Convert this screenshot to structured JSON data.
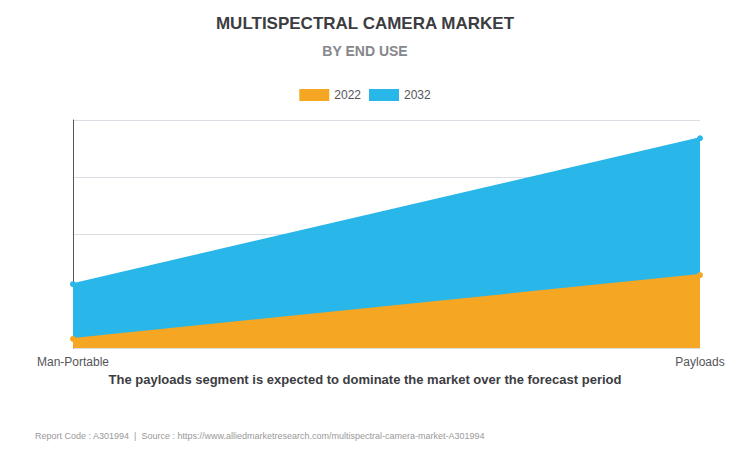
{
  "chart_data": {
    "type": "area",
    "title": "MULTISPECTRAL CAMERA MARKET",
    "subtitle": "BY END USE",
    "categories": [
      "Man-Portable",
      "Payloads"
    ],
    "series": [
      {
        "name": "2022",
        "color": "#F5A623",
        "values": [
          0.04,
          0.32
        ]
      },
      {
        "name": "2032",
        "color": "#29B6E8",
        "values": [
          0.28,
          0.92
        ]
      }
    ],
    "ylim": [
      0,
      1.0
    ],
    "yticks": [
      0,
      0.25,
      0.5,
      0.75,
      1.0
    ],
    "grid": true,
    "legend": "top",
    "tick_labels": "x",
    "marker": "circle",
    "annotations": [
      "The payloads segment is expected to dominate the market over the forecast period",
      "Report Code : A301994  |  Source : https://www.alliedmarketresearch.com/multispectral-camera-market-A301994"
    ]
  }
}
